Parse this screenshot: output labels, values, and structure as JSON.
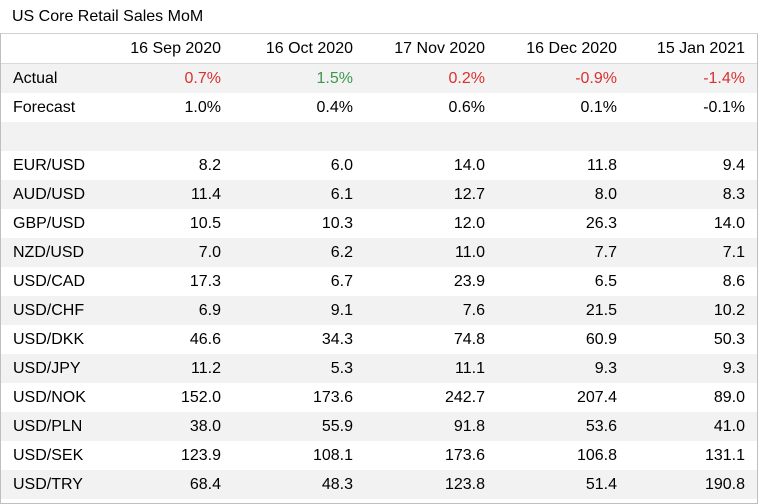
{
  "title": "US Core Retail Sales MoM",
  "chart_data": {
    "type": "table",
    "title": "US Core Retail Sales MoM",
    "columns": [
      "",
      "16 Sep 2020",
      "16 Oct 2020",
      "17 Nov 2020",
      "16 Dec 2020",
      "15 Jan 2021"
    ],
    "rows": [
      {
        "label": "Actual",
        "values": [
          "0.7%",
          "1.5%",
          "0.2%",
          "-0.9%",
          "-1.4%"
        ],
        "styles": [
          "neg",
          "pos",
          "neg",
          "neg",
          "neg"
        ]
      },
      {
        "label": "Forecast",
        "values": [
          "1.0%",
          "0.4%",
          "0.6%",
          "0.1%",
          "-0.1%"
        ],
        "styles": [
          "",
          "",
          "",
          "",
          ""
        ]
      },
      {
        "label": "",
        "values": [
          "",
          "",
          "",
          "",
          ""
        ],
        "styles": [
          "",
          "",
          "",
          "",
          ""
        ]
      },
      {
        "label": "EUR/USD",
        "values": [
          "8.2",
          "6.0",
          "14.0",
          "11.8",
          "9.4"
        ],
        "styles": [
          "",
          "",
          "",
          "",
          ""
        ]
      },
      {
        "label": "AUD/USD",
        "values": [
          "11.4",
          "6.1",
          "12.7",
          "8.0",
          "8.3"
        ],
        "styles": [
          "",
          "",
          "",
          "",
          ""
        ]
      },
      {
        "label": "GBP/USD",
        "values": [
          "10.5",
          "10.3",
          "12.0",
          "26.3",
          "14.0"
        ],
        "styles": [
          "",
          "",
          "",
          "",
          ""
        ]
      },
      {
        "label": "NZD/USD",
        "values": [
          "7.0",
          "6.2",
          "11.0",
          "7.7",
          "7.1"
        ],
        "styles": [
          "",
          "",
          "",
          "",
          ""
        ]
      },
      {
        "label": "USD/CAD",
        "values": [
          "17.3",
          "6.7",
          "23.9",
          "6.5",
          "8.6"
        ],
        "styles": [
          "",
          "",
          "",
          "",
          ""
        ]
      },
      {
        "label": "USD/CHF",
        "values": [
          "6.9",
          "9.1",
          "7.6",
          "21.5",
          "10.2"
        ],
        "styles": [
          "",
          "",
          "",
          "",
          ""
        ]
      },
      {
        "label": "USD/DKK",
        "values": [
          "46.6",
          "34.3",
          "74.8",
          "60.9",
          "50.3"
        ],
        "styles": [
          "",
          "",
          "",
          "",
          ""
        ]
      },
      {
        "label": "USD/JPY",
        "values": [
          "11.2",
          "5.3",
          "11.1",
          "9.3",
          "9.3"
        ],
        "styles": [
          "",
          "",
          "",
          "",
          ""
        ]
      },
      {
        "label": "USD/NOK",
        "values": [
          "152.0",
          "173.6",
          "242.7",
          "207.4",
          "89.0"
        ],
        "styles": [
          "",
          "",
          "",
          "",
          ""
        ]
      },
      {
        "label": "USD/PLN",
        "values": [
          "38.0",
          "55.9",
          "91.8",
          "53.6",
          "41.0"
        ],
        "styles": [
          "",
          "",
          "",
          "",
          ""
        ]
      },
      {
        "label": "USD/SEK",
        "values": [
          "123.9",
          "108.1",
          "173.6",
          "106.8",
          "131.1"
        ],
        "styles": [
          "",
          "",
          "",
          "",
          ""
        ]
      },
      {
        "label": "USD/TRY",
        "values": [
          "68.4",
          "48.3",
          "123.8",
          "51.4",
          "190.8"
        ],
        "styles": [
          "",
          "",
          "",
          "",
          ""
        ]
      }
    ],
    "colors": {
      "negative": "#d9312f",
      "positive": "#3a9a4a",
      "row_shade": "#f2f2f2"
    }
  }
}
